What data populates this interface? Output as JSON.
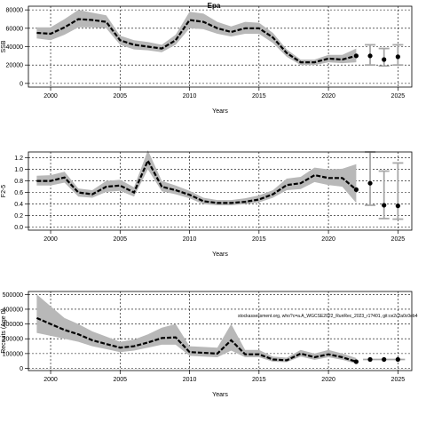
{
  "figure": {
    "title": "Epa",
    "annotation": "stockassessment.org, who?c=a.A_WGCSE2022_RunRec_2023_r1?401, git:ce2c2a0c0eb4"
  },
  "chart_data": [
    {
      "type": "line",
      "ylabel": "SSB",
      "xlabel": "Years",
      "xlim": [
        1998.4,
        2026.0
      ],
      "ylim": [
        -4000,
        84000
      ],
      "xticks": [
        2000,
        2005,
        2010,
        2015,
        2020,
        2025
      ],
      "yticks": [
        0,
        20000,
        40000,
        60000,
        80000
      ],
      "ytick_labels": [
        "0",
        "20000",
        "40000",
        "60000",
        "80000"
      ],
      "grid": true,
      "x": [
        1999,
        2000,
        2001,
        2002,
        2003,
        2004,
        2005,
        2006,
        2007,
        2008,
        2009,
        2010,
        2011,
        2012,
        2013,
        2014,
        2015,
        2016,
        2017,
        2018,
        2019,
        2020,
        2021,
        2022
      ],
      "values": [
        55000,
        54000,
        61000,
        70000,
        69000,
        67000,
        47000,
        42000,
        40000,
        38000,
        47000,
        69000,
        67000,
        60000,
        56000,
        60000,
        60000,
        50000,
        33000,
        23000,
        23000,
        27000,
        26000,
        30000
      ],
      "lower": [
        49000,
        47000,
        53000,
        61000,
        61000,
        60000,
        42000,
        37000,
        36000,
        34000,
        42000,
        60000,
        59000,
        54000,
        51000,
        54000,
        54000,
        44000,
        29000,
        20000,
        20000,
        23000,
        22000,
        23000
      ],
      "upper": [
        61000,
        61000,
        70000,
        80000,
        77000,
        74000,
        52000,
        47000,
        45000,
        42000,
        53000,
        78000,
        76000,
        67000,
        62000,
        67000,
        66000,
        55000,
        37000,
        26000,
        26000,
        31000,
        31000,
        38000
      ],
      "forecast": [
        {
          "x": 2023,
          "value": 30000,
          "low": 20000,
          "high": 42000
        },
        {
          "x": 2024,
          "value": 26000,
          "low": 19000,
          "high": 38000
        },
        {
          "x": 2025,
          "value": 29000,
          "low": 20000,
          "high": 42000
        }
      ]
    },
    {
      "type": "line",
      "ylabel": "F2-5",
      "xlabel": "Years",
      "xlim": [
        1998.4,
        2026.0
      ],
      "ylim": [
        -0.05,
        1.3
      ],
      "xticks": [
        2000,
        2005,
        2010,
        2015,
        2020,
        2025
      ],
      "yticks": [
        0.0,
        0.2,
        0.4,
        0.6,
        0.8,
        1.0,
        1.2
      ],
      "ytick_labels": [
        "0.0",
        "0.2",
        "0.4",
        "0.6",
        "0.8",
        "1.0",
        "1.2"
      ],
      "grid": true,
      "x": [
        1999,
        2000,
        2001,
        2002,
        2003,
        2004,
        2005,
        2006,
        2007,
        2008,
        2009,
        2010,
        2011,
        2012,
        2013,
        2014,
        2015,
        2016,
        2017,
        2018,
        2019,
        2020,
        2021,
        2022
      ],
      "values": [
        0.8,
        0.8,
        0.86,
        0.6,
        0.57,
        0.7,
        0.72,
        0.6,
        1.15,
        0.7,
        0.64,
        0.56,
        0.45,
        0.42,
        0.42,
        0.44,
        0.48,
        0.57,
        0.73,
        0.76,
        0.9,
        0.85,
        0.85,
        0.65
      ],
      "lower": [
        0.72,
        0.72,
        0.77,
        0.53,
        0.51,
        0.61,
        0.63,
        0.53,
        1.0,
        0.62,
        0.57,
        0.5,
        0.4,
        0.38,
        0.38,
        0.4,
        0.43,
        0.51,
        0.64,
        0.66,
        0.78,
        0.73,
        0.7,
        0.42
      ],
      "upper": [
        0.89,
        0.9,
        0.96,
        0.67,
        0.64,
        0.8,
        0.82,
        0.69,
        1.33,
        0.8,
        0.72,
        0.63,
        0.51,
        0.47,
        0.47,
        0.5,
        0.55,
        0.64,
        0.84,
        0.87,
        1.03,
        1.0,
        1.01,
        1.09
      ],
      "forecast": [
        {
          "x": 2023,
          "value": 0.76,
          "low": 0.38,
          "high": 1.3
        },
        {
          "x": 2024,
          "value": 0.38,
          "low": 0.15,
          "high": 0.97
        },
        {
          "x": 2025,
          "value": 0.37,
          "low": 0.14,
          "high": 1.11
        }
      ]
    },
    {
      "type": "line",
      "ylabel": "Recruits (Age 0)",
      "xlabel": "Years",
      "xlim": [
        1998.4,
        2026.0
      ],
      "ylim": [
        -15000,
        520000
      ],
      "xticks": [
        2000,
        2005,
        2010,
        2015,
        2020,
        2025
      ],
      "yticks": [
        0,
        100000,
        200000,
        300000,
        400000,
        500000
      ],
      "ytick_labels": [
        "0",
        "100000",
        "200000",
        "300000",
        "400000",
        "500000"
      ],
      "grid": true,
      "x": [
        1999,
        2000,
        2001,
        2002,
        2003,
        2004,
        2005,
        2006,
        2007,
        2008,
        2009,
        2010,
        2011,
        2012,
        2013,
        2014,
        2015,
        2016,
        2017,
        2018,
        2019,
        2020,
        2021,
        2022
      ],
      "values": [
        340000,
        300000,
        260000,
        230000,
        190000,
        165000,
        140000,
        150000,
        175000,
        205000,
        210000,
        110000,
        105000,
        100000,
        190000,
        95000,
        95000,
        60000,
        55000,
        100000,
        75000,
        95000,
        75000,
        45000
      ],
      "lower": [
        240000,
        220000,
        200000,
        180000,
        150000,
        130000,
        110000,
        120000,
        140000,
        160000,
        160000,
        85000,
        80000,
        75000,
        120000,
        75000,
        75000,
        45000,
        42000,
        80000,
        58000,
        75000,
        58000,
        32000
      ],
      "upper": [
        500000,
        420000,
        340000,
        300000,
        250000,
        215000,
        180000,
        195000,
        230000,
        275000,
        300000,
        150000,
        145000,
        140000,
        300000,
        125000,
        125000,
        80000,
        72000,
        125000,
        100000,
        125000,
        100000,
        70000
      ],
      "forecast": [
        {
          "x": 2023,
          "value": 60000,
          "low": 60000,
          "high": 60000
        },
        {
          "x": 2024,
          "value": 60000,
          "low": 60000,
          "high": 60000
        },
        {
          "x": 2025,
          "value": 60000,
          "low": 60000,
          "high": 60000
        }
      ]
    }
  ]
}
